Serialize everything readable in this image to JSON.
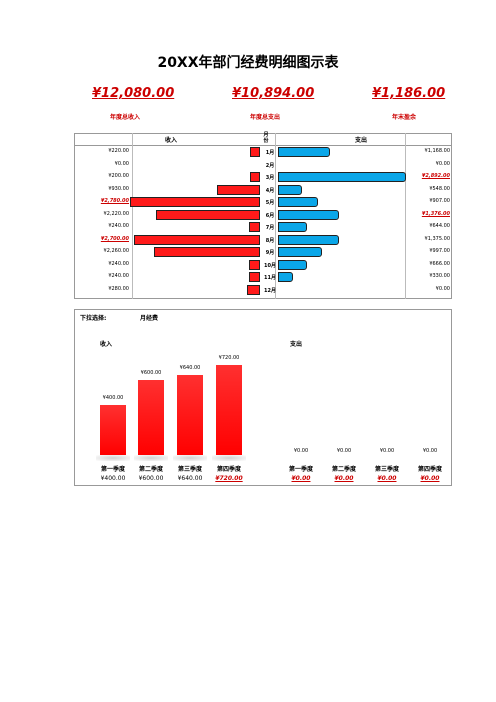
{
  "title": "20XX年部门经费明细图示表",
  "summary": [
    {
      "value": "¥12,080.00",
      "label": "年度总收入"
    },
    {
      "value": "¥10,894.00",
      "label": "年度总支出"
    },
    {
      "value": "¥1,186.00",
      "label": "年末盈余"
    }
  ],
  "monthly": {
    "income_header": "收入",
    "month_header": "月份",
    "expense_header": "支出",
    "rows": [
      {
        "month": "1月",
        "income": "¥220.00",
        "income_value": 220,
        "income_neg": false,
        "expense": "¥1,168.00",
        "expense_value": 1168,
        "expense_neg": false
      },
      {
        "month": "2月",
        "income": "¥0.00",
        "income_value": 0,
        "income_neg": false,
        "expense": "¥0.00",
        "expense_value": 0,
        "expense_neg": false
      },
      {
        "month": "3月",
        "income": "¥200.00",
        "income_value": 200,
        "income_neg": false,
        "expense": "¥2,892.00",
        "expense_value": 2892,
        "expense_neg": true
      },
      {
        "month": "4月",
        "income": "¥930.00",
        "income_value": 930,
        "income_neg": false,
        "expense": "¥548.00",
        "expense_value": 548,
        "expense_neg": false
      },
      {
        "month": "5月",
        "income": "¥2,780.00",
        "income_value": 2780,
        "income_neg": true,
        "expense": "¥907.00",
        "expense_value": 907,
        "expense_neg": false
      },
      {
        "month": "6月",
        "income": "¥2,220.00",
        "income_value": 2220,
        "income_neg": false,
        "expense": "¥1,376.00",
        "expense_value": 1376,
        "expense_neg": true
      },
      {
        "month": "7月",
        "income": "¥240.00",
        "income_value": 240,
        "income_neg": false,
        "expense": "¥644.00",
        "expense_value": 644,
        "expense_neg": false
      },
      {
        "month": "8月",
        "income": "¥2,700.00",
        "income_value": 2700,
        "income_neg": true,
        "expense": "¥1,375.00",
        "expense_value": 1375,
        "expense_neg": false
      },
      {
        "month": "9月",
        "income": "¥2,260.00",
        "income_value": 2260,
        "income_neg": false,
        "expense": "¥997.00",
        "expense_value": 997,
        "expense_neg": false
      },
      {
        "month": "10月",
        "income": "¥240.00",
        "income_value": 240,
        "income_neg": false,
        "expense": "¥666.00",
        "expense_value": 666,
        "expense_neg": false
      },
      {
        "month": "11月",
        "income": "¥240.00",
        "income_value": 240,
        "income_neg": false,
        "expense": "¥330.00",
        "expense_value": 330,
        "expense_neg": false
      },
      {
        "month": "12月",
        "income": "¥280.00",
        "income_value": 280,
        "income_neg": false,
        "expense": "¥0.00",
        "expense_value": 0,
        "expense_neg": false
      }
    ]
  },
  "quarter_panel": {
    "dropdown_label": "下拉选择:",
    "dropdown_value": "月经费",
    "income_label": "收入",
    "expense_label": "支出",
    "income_quarters": [
      {
        "label": "第一季度",
        "value": 400,
        "amount": "¥400.00",
        "bar_label": "¥400.00",
        "neg": false
      },
      {
        "label": "第二季度",
        "value": 600,
        "amount": "¥600.00",
        "bar_label": "¥600.00",
        "neg": false
      },
      {
        "label": "第三季度",
        "value": 640,
        "amount": "¥640.00",
        "bar_label": "¥640.00",
        "neg": false
      },
      {
        "label": "第四季度",
        "value": 720,
        "amount": "¥720.00",
        "bar_label": "¥720.00",
        "neg": true
      }
    ],
    "expense_quarters": [
      {
        "label": "第一季度",
        "value": 0,
        "amount": "¥0.00",
        "bar_label": "¥0.00",
        "neg": true
      },
      {
        "label": "第二季度",
        "value": 0,
        "amount": "¥0.00",
        "bar_label": "¥0.00",
        "neg": true
      },
      {
        "label": "第三季度",
        "value": 0,
        "amount": "¥0.00",
        "bar_label": "¥0.00",
        "neg": true
      },
      {
        "label": "第四季度",
        "value": 0,
        "amount": "¥0.00",
        "bar_label": "¥0.00",
        "neg": true
      }
    ]
  },
  "colors": {
    "income": "#ff1a1a",
    "expense": "#0aa6e8",
    "highlight": "#cc0000"
  }
}
